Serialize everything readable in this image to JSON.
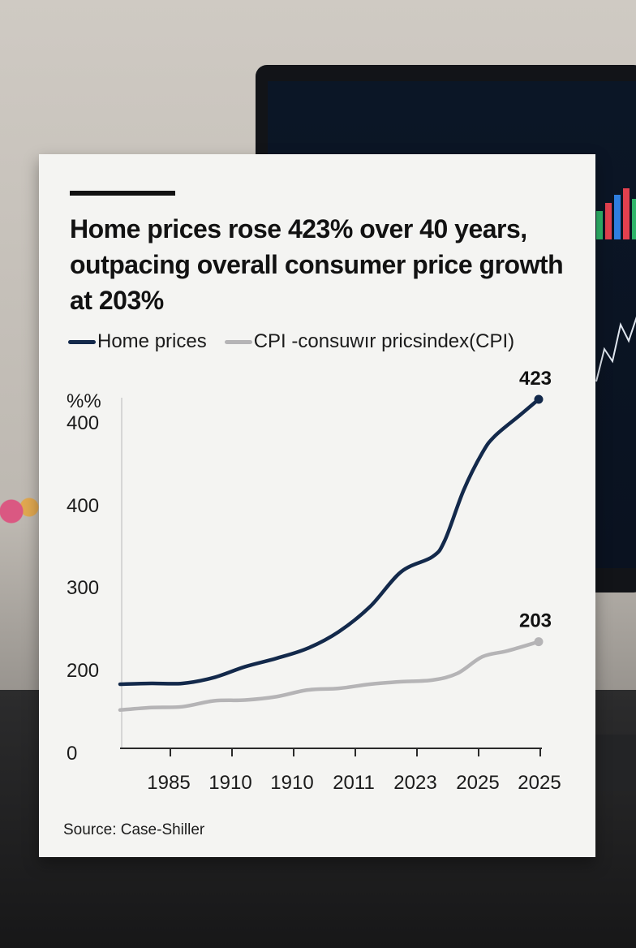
{
  "title": "Home prices rose 423% over 40 years, outpacing overall consumer price growth at 203%",
  "legend": [
    {
      "label": "Home prices",
      "color": "#13294b"
    },
    {
      "label": "CPI -consuwır pricsindex(CPI)",
      "color": "#b5b4b6"
    }
  ],
  "source": "Source: Case-Shiller",
  "chart_data": {
    "type": "line",
    "ylabel": "%%",
    "y_tick_labels": [
      "0",
      "200",
      "300",
      "400",
      "400"
    ],
    "x_tick_labels": [
      "1985",
      "1910",
      "1910",
      "2011",
      "2023",
      "2025",
      "2025"
    ],
    "series": [
      {
        "name": "Home prices",
        "color": "#13294b",
        "x": [
          0,
          0.5,
          1,
          1.5,
          2,
          2.5,
          3,
          3.5,
          4,
          4.5,
          5,
          5.2,
          5.5,
          5.8,
          6,
          6.4,
          6.7
        ],
        "values": [
          177,
          178,
          178,
          185,
          198,
          208,
          220,
          240,
          270,
          312,
          330,
          350,
          410,
          455,
          475,
          500,
          519
        ],
        "end_label": "423"
      },
      {
        "name": "CPI -consuwır pricsindex(CPI)",
        "color": "#b5b4b6",
        "x": [
          0,
          0.5,
          1,
          1.5,
          2,
          2.5,
          3,
          3.5,
          4,
          4.5,
          5,
          5.4,
          5.8,
          6.2,
          6.7
        ],
        "values": [
          146,
          149,
          150,
          157,
          158,
          162,
          170,
          172,
          177,
          180,
          182,
          190,
          210,
          217,
          228
        ],
        "end_label": "203"
      }
    ]
  }
}
